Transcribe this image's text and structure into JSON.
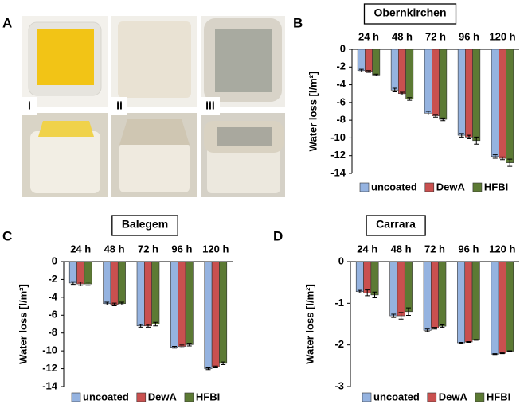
{
  "figure": {
    "panel_labels": [
      "A",
      "B",
      "C",
      "D"
    ],
    "photo_labels": [
      "i",
      "ii",
      "iii"
    ]
  },
  "chart_data": [
    {
      "type": "bar",
      "title": "Obernkirchen",
      "ylabel": "Water loss [l/m²]",
      "categories": [
        "24 h",
        "48 h",
        "72 h",
        "96 h",
        "120 h"
      ],
      "series": [
        {
          "name": "uncoated",
          "color": "#95b3e0",
          "values": [
            -2.4,
            -4.6,
            -7.2,
            -9.7,
            -12.1
          ],
          "errors": [
            0.15,
            0.2,
            0.2,
            0.2,
            0.2
          ]
        },
        {
          "name": "DewA",
          "color": "#c9504f",
          "values": [
            -2.5,
            -5.0,
            -7.5,
            -9.9,
            -12.3
          ],
          "errors": [
            0.1,
            0.15,
            0.15,
            0.2,
            0.15
          ]
        },
        {
          "name": "HFBI",
          "color": "#5c7a34",
          "values": [
            -2.9,
            -5.6,
            -7.9,
            -10.3,
            -12.8
          ],
          "errors": [
            0.1,
            0.15,
            0.15,
            0.4,
            0.4
          ]
        }
      ],
      "ylim": [
        -14,
        0
      ],
      "yticks": [
        0,
        -2,
        -4,
        -6,
        -8,
        -10,
        -12,
        -14
      ]
    },
    {
      "type": "bar",
      "title": "Balegem",
      "ylabel": "Water loss [l/m²]",
      "categories": [
        "24 h",
        "48 h",
        "72 h",
        "96 h",
        "120 h"
      ],
      "series": [
        {
          "name": "uncoated",
          "color": "#95b3e0",
          "values": [
            -2.4,
            -4.7,
            -7.2,
            -9.6,
            -12.0
          ],
          "errors": [
            0.15,
            0.15,
            0.15,
            0.1,
            0.1
          ]
        },
        {
          "name": "DewA",
          "color": "#c9504f",
          "values": [
            -2.5,
            -4.8,
            -7.2,
            -9.5,
            -11.8
          ],
          "errors": [
            0.2,
            0.15,
            0.15,
            0.15,
            0.1
          ]
        },
        {
          "name": "HFBI",
          "color": "#5c7a34",
          "values": [
            -2.5,
            -4.7,
            -7.0,
            -9.3,
            -11.4
          ],
          "errors": [
            0.2,
            0.15,
            0.2,
            0.15,
            0.15
          ]
        }
      ],
      "ylim": [
        -14,
        0
      ],
      "yticks": [
        0,
        -2,
        -4,
        -6,
        -8,
        -10,
        -12,
        -14
      ]
    },
    {
      "type": "bar",
      "title": "Carrara",
      "ylabel": "Water loss [l/m²]",
      "categories": [
        "24 h",
        "48 h",
        "72 h",
        "96 h",
        "120 h"
      ],
      "series": [
        {
          "name": "uncoated",
          "color": "#95b3e0",
          "values": [
            -0.72,
            -1.3,
            -1.65,
            -1.95,
            -2.22
          ],
          "errors": [
            0.03,
            0.04,
            0.03,
            0.01,
            0.01
          ]
        },
        {
          "name": "DewA",
          "color": "#c9504f",
          "values": [
            -0.75,
            -1.3,
            -1.6,
            -1.93,
            -2.2
          ],
          "errors": [
            0.07,
            0.08,
            0.02,
            0.01,
            0.01
          ]
        },
        {
          "name": "HFBI",
          "color": "#5c7a34",
          "values": [
            -0.8,
            -1.2,
            -1.55,
            -1.88,
            -2.15
          ],
          "errors": [
            0.07,
            0.09,
            0.03,
            0.01,
            0.01
          ]
        }
      ],
      "ylim": [
        -3,
        0
      ],
      "yticks": [
        0,
        -1,
        -2,
        -3
      ]
    }
  ]
}
